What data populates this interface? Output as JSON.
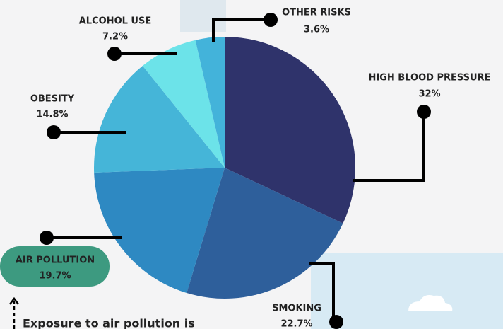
{
  "chart_data": {
    "type": "pie",
    "categories": [
      "HIGH BLOOD PRESSURE",
      "SMOKING",
      "AIR POLLUTION",
      "OBESITY",
      "ALCOHOL USE",
      "OTHER RISKS"
    ],
    "values": [
      32,
      22.7,
      19.7,
      14.8,
      7.2,
      3.6
    ],
    "value_labels": [
      "32%",
      "22.7%",
      "19.7%",
      "14.8%",
      "7.2%",
      "3.6%"
    ],
    "colors": [
      "#2f336b",
      "#2e5f9b",
      "#2e89c2",
      "#45b5d8",
      "#6ce3e9",
      "#43b3da"
    ],
    "annotation": "Exposure to air pollution is"
  }
}
